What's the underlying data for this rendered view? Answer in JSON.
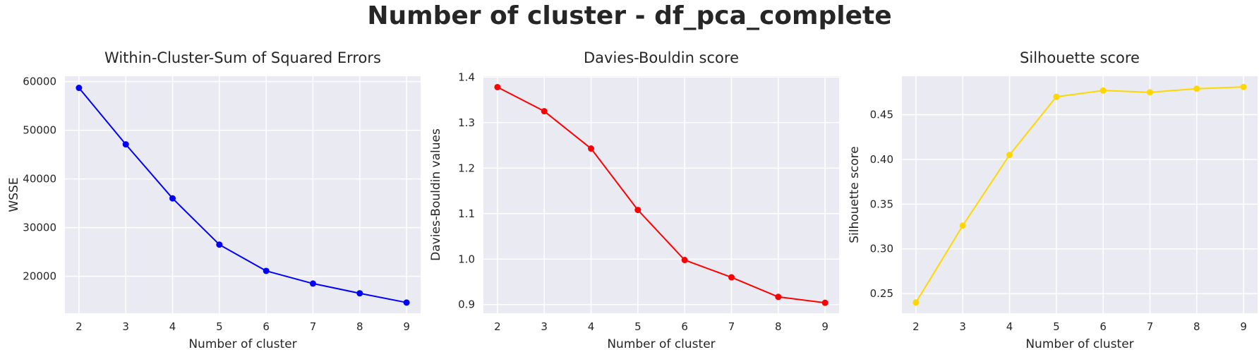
{
  "suptitle": "Number of cluster - df_pca_complete",
  "chart_data": [
    {
      "type": "line",
      "title": "Within-Cluster-Sum of Squared Errors",
      "xlabel": "Number of cluster",
      "ylabel": "WSSE",
      "x": [
        2,
        3,
        4,
        5,
        6,
        7,
        8,
        9
      ],
      "xticks": [
        2,
        3,
        4,
        5,
        6,
        7,
        8,
        9
      ],
      "values": [
        58700,
        47100,
        36000,
        26500,
        21100,
        18500,
        16500,
        14600
      ],
      "xlim": [
        1.7,
        9.3
      ],
      "ylim": [
        12400,
        61100
      ],
      "yticks": [
        20000,
        30000,
        40000,
        50000,
        60000
      ],
      "color": "#0000ff",
      "marker": "circle",
      "grid": true
    },
    {
      "type": "line",
      "title": "Davies-Bouldin score",
      "xlabel": "Number of cluster",
      "ylabel": "Davies-Bouldin values",
      "x": [
        2,
        3,
        4,
        5,
        6,
        7,
        8,
        9
      ],
      "xticks": [
        2,
        3,
        4,
        5,
        6,
        7,
        8,
        9
      ],
      "values": [
        1.378,
        1.325,
        1.243,
        1.108,
        0.998,
        0.96,
        0.917,
        0.904
      ],
      "xlim": [
        1.7,
        9.3
      ],
      "ylim": [
        0.881,
        1.402
      ],
      "yticks": [
        0.9,
        1.0,
        1.1,
        1.2,
        1.3,
        1.4
      ],
      "ytick_labels": [
        "0.9",
        "1.0",
        "1.1",
        "1.2",
        "1.3",
        "1.4"
      ],
      "color": "#ff0000",
      "marker": "circle",
      "grid": true
    },
    {
      "type": "line",
      "title": "Silhouette score",
      "xlabel": "Number of cluster",
      "ylabel": "Silhouette score",
      "x": [
        2,
        3,
        4,
        5,
        6,
        7,
        8,
        9
      ],
      "xticks": [
        2,
        3,
        4,
        5,
        6,
        7,
        8,
        9
      ],
      "values": [
        0.24,
        0.326,
        0.405,
        0.47,
        0.477,
        0.475,
        0.479,
        0.481
      ],
      "xlim": [
        1.7,
        9.3
      ],
      "ylim": [
        0.228,
        0.493
      ],
      "yticks": [
        0.25,
        0.3,
        0.35,
        0.4,
        0.45
      ],
      "ytick_labels": [
        "0.25",
        "0.30",
        "0.35",
        "0.40",
        "0.45"
      ],
      "color": "#ffd700",
      "marker": "circle",
      "grid": true
    }
  ]
}
